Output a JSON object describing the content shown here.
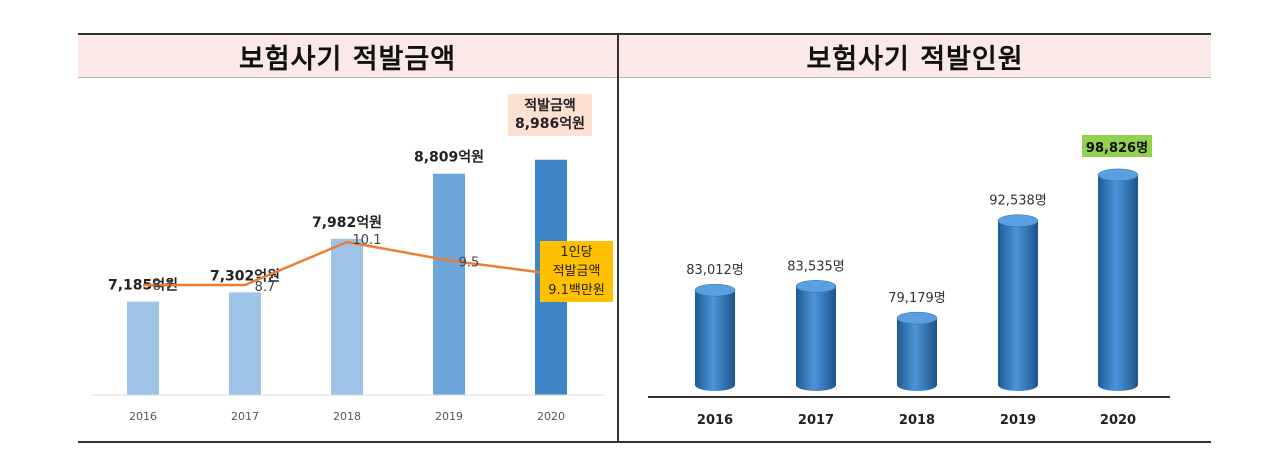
{
  "chart_data": [
    {
      "type": "bar",
      "title": "보험사기 적발금액",
      "categories": [
        "2016",
        "2017",
        "2018",
        "2019",
        "2020"
      ],
      "values": [
        7185,
        7302,
        7982,
        8809,
        8986
      ],
      "value_labels": [
        "7,185억원",
        "7,302억원",
        "7,982억원",
        "8,809억원",
        "8,986억원"
      ],
      "bar_colors": [
        "#9dc3e6",
        "#9dc3e6",
        "#9dc3e6",
        "#6ea6dc",
        "#3d85c6"
      ],
      "line_series": {
        "values": [
          8.7,
          8.7,
          10.1,
          9.5,
          9.1
        ],
        "value_labels": [
          "8.7",
          "8.7",
          "10.1",
          "9.5",
          ""
        ],
        "color": "#ed7d31"
      },
      "callout_total": [
        "적발금액",
        "8,986억원"
      ],
      "callout_per_person": [
        "1인당",
        "적발금액",
        "9.1백만원"
      ],
      "grid": false
    },
    {
      "type": "bar",
      "title": "보험사기 적발인원",
      "categories": [
        "2016",
        "2017",
        "2018",
        "2019",
        "2020"
      ],
      "values": [
        83012,
        83535,
        79179,
        92538,
        98826
      ],
      "value_labels": [
        "83,012명",
        "83,535명",
        "79,179명",
        "92,538명",
        "98,826명"
      ],
      "bar_color": "#2e75b6",
      "highlight_color": "#92d050",
      "grid": false
    }
  ]
}
